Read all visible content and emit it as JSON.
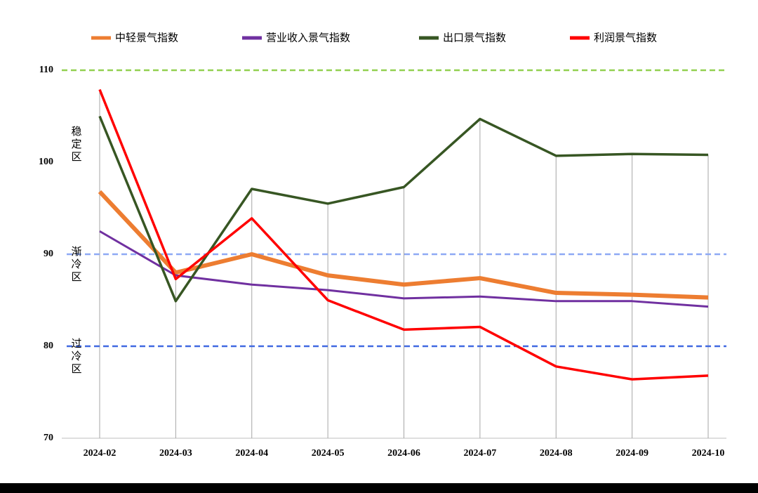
{
  "chart_data": {
    "type": "line",
    "categories": [
      "2024-02",
      "2024-03",
      "2024-04",
      "2024-05",
      "2024-06",
      "2024-07",
      "2024-08",
      "2024-09",
      "2024-10"
    ],
    "series": [
      {
        "name": "中轻景气指数",
        "color": "#ed7d31",
        "values": [
          96.8,
          88.0,
          90.0,
          87.7,
          86.7,
          87.4,
          85.8,
          85.6,
          85.3
        ]
      },
      {
        "name": "营业收入景气指数",
        "color": "#7030a0",
        "values": [
          92.5,
          87.7,
          86.7,
          86.1,
          85.2,
          85.4,
          84.9,
          84.9,
          84.3
        ]
      },
      {
        "name": "出口景气指数",
        "color": "#375623",
        "values": [
          105.0,
          84.9,
          97.1,
          95.5,
          97.3,
          104.7,
          100.7,
          100.9,
          100.8
        ]
      },
      {
        "name": "利润景气指数",
        "color": "#ff0000",
        "values": [
          107.9,
          87.3,
          93.9,
          85.0,
          81.8,
          82.1,
          77.8,
          76.4,
          76.8
        ]
      }
    ],
    "ylim": [
      70,
      110
    ],
    "yticks": [
      70,
      80,
      90,
      100,
      110
    ],
    "reference_lines": [
      {
        "value": 110,
        "color": "#92d050"
      },
      {
        "value": 90,
        "color": "#8ea9f5"
      },
      {
        "value": 80,
        "color": "#4169e1"
      }
    ],
    "zones": [
      {
        "text": "稳定区",
        "y": 100,
        "color": "#2e7d6b"
      },
      {
        "text": "渐冷区",
        "y": 90,
        "color": "#3030c0"
      },
      {
        "text": "过冷区",
        "y": 80,
        "color": "#00a0e0"
      }
    ]
  }
}
